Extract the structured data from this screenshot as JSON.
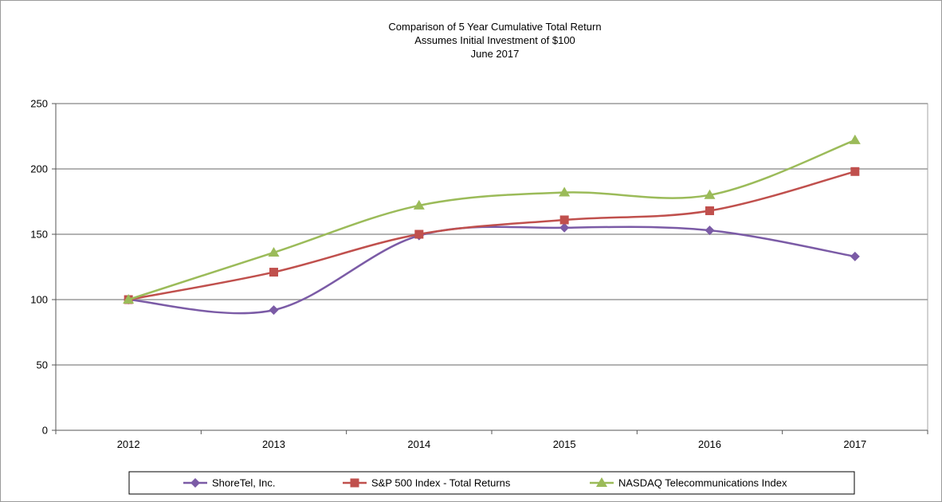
{
  "chart_data": {
    "type": "line",
    "title_lines": [
      "Comparison of 5 Year Cumulative Total Return",
      "Assumes Initial Investment of $100",
      "June 2017"
    ],
    "categories": [
      "2012",
      "2013",
      "2014",
      "2015",
      "2016",
      "2017"
    ],
    "ylim": [
      0,
      250
    ],
    "yticks": [
      0,
      50,
      100,
      150,
      200,
      250
    ],
    "ytick_labels": [
      "0",
      "50",
      "100",
      "150",
      "200",
      "250"
    ],
    "grid": true,
    "legend_position": "bottom",
    "series": [
      {
        "name": "ShoreTel, Inc.",
        "marker": "diamond",
        "color": "#7b5ba6",
        "values": [
          100,
          92,
          149,
          155,
          153,
          133
        ]
      },
      {
        "name": "S&P 500 Index - Total Returns",
        "marker": "square",
        "color": "#c0504d",
        "values": [
          100,
          121,
          150,
          161,
          168,
          198
        ]
      },
      {
        "name": "NASDAQ Telecommunications Index",
        "marker": "triangle",
        "color": "#9bbb59",
        "values": [
          100,
          136,
          172,
          182,
          180,
          222
        ]
      }
    ]
  }
}
